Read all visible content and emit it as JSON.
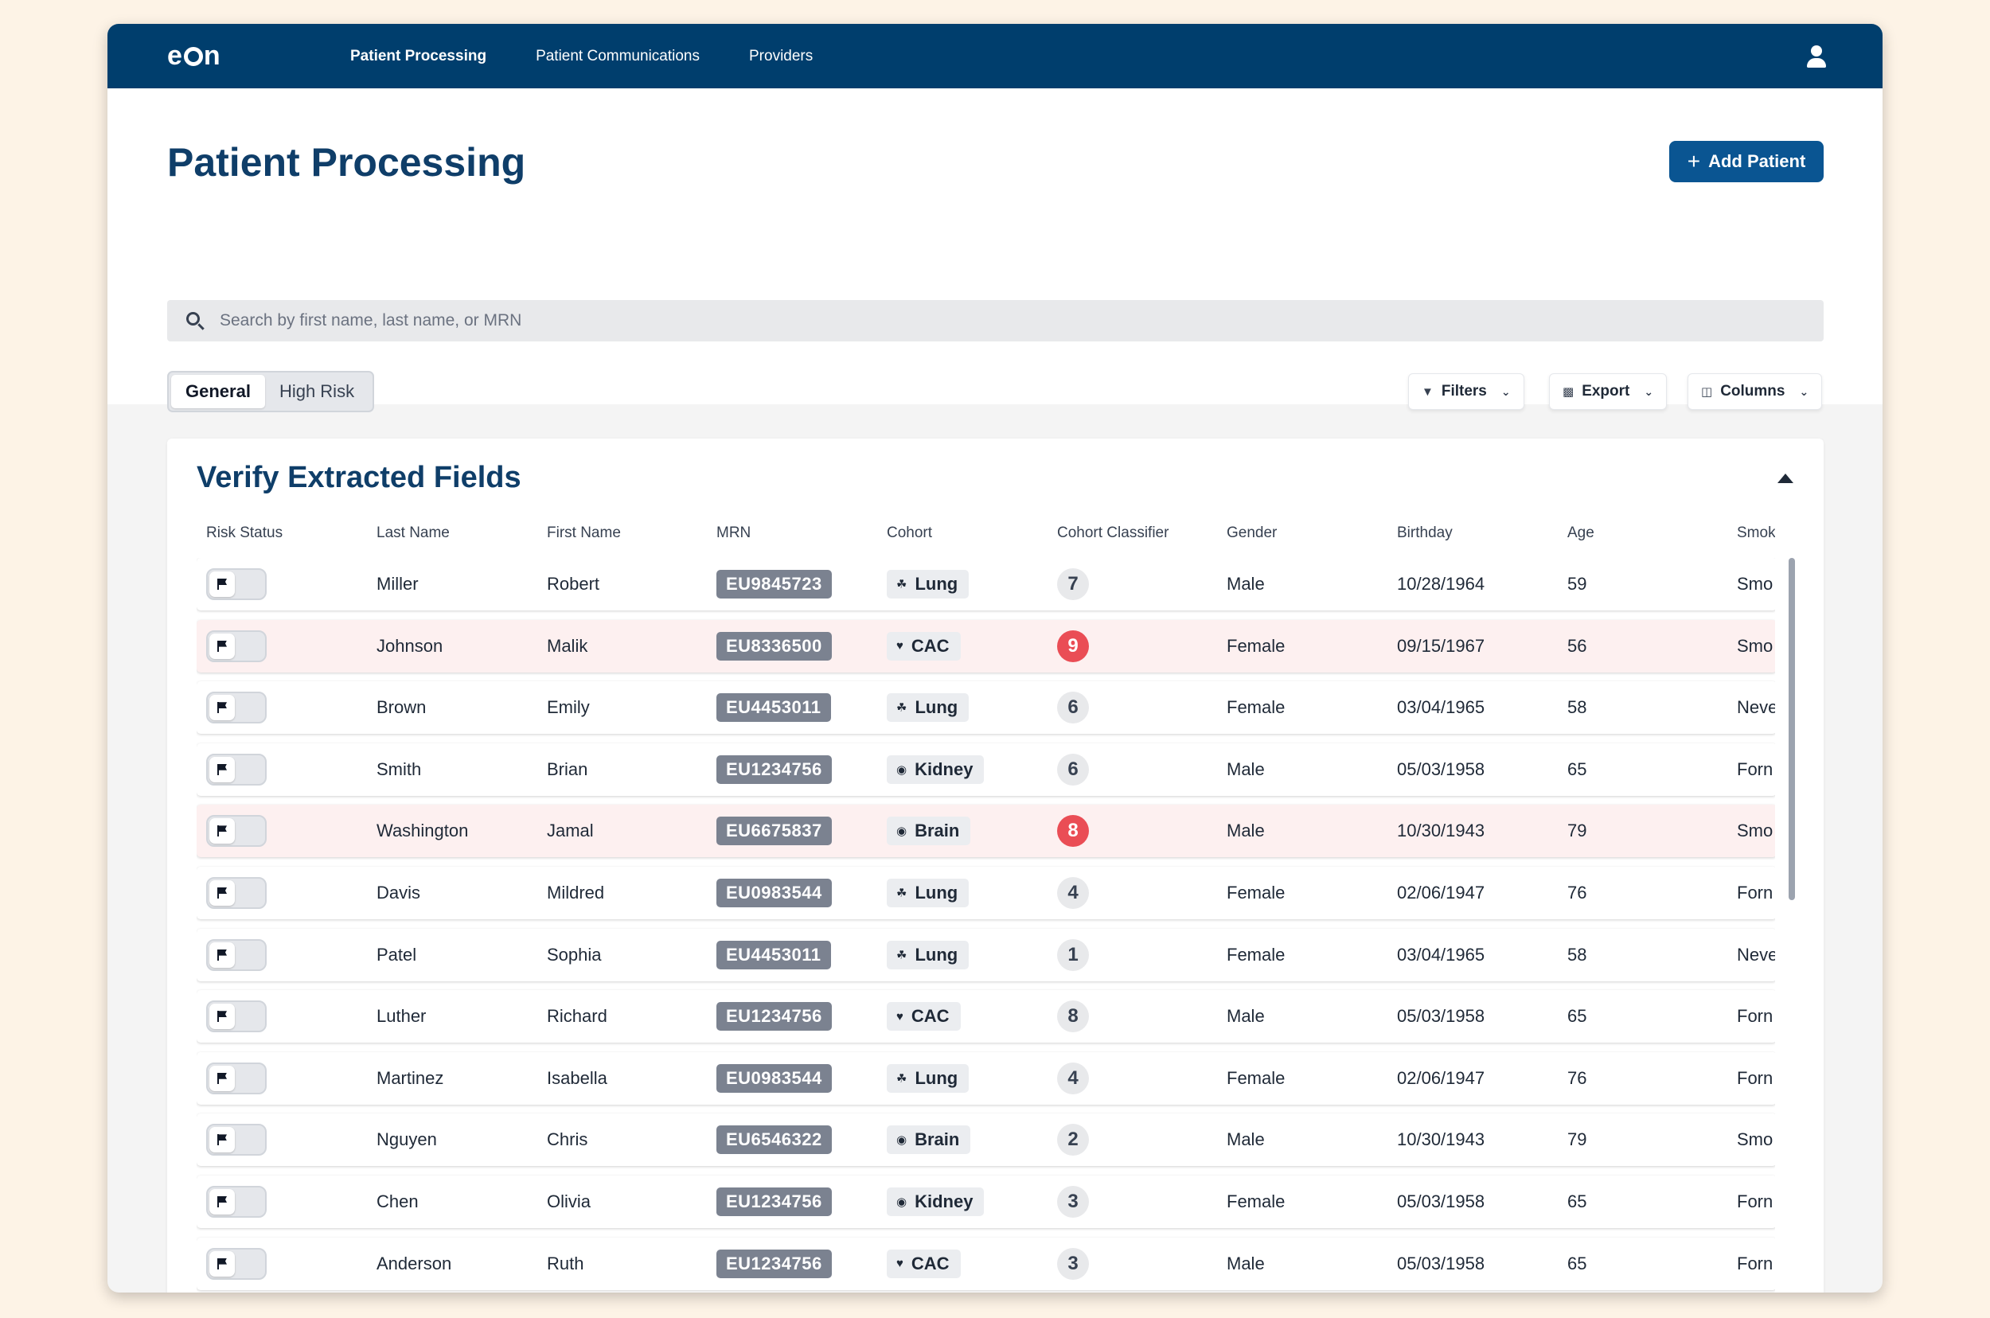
{
  "app": {
    "logo": "eon",
    "nav": [
      "Patient Processing",
      "Patient Communications",
      "Providers"
    ],
    "active_nav": "Patient Processing"
  },
  "header": {
    "title": "Patient Processing",
    "add_button": "Add Patient",
    "search_placeholder": "Search by first name, last name, or MRN",
    "segments": [
      "General",
      "High Risk"
    ],
    "active_segment": "General",
    "filters_label": "Filters",
    "export_label": "Export",
    "columns_label": "Columns"
  },
  "table": {
    "title": "Verify Extracted Fields",
    "columns": [
      "Risk Status",
      "Last Name",
      "First Name",
      "MRN",
      "Cohort",
      "Cohort Classifier",
      "Gender",
      "Birthday",
      "Age",
      "Smok"
    ],
    "rows": [
      {
        "last": "Miller",
        "first": "Robert",
        "mrn": "EU9845723",
        "cohort": "Lung",
        "score": "7",
        "high": false,
        "gender": "Male",
        "birthday": "10/28/1964",
        "age": "59",
        "smoking": "Smo"
      },
      {
        "last": "Johnson",
        "first": "Malik",
        "mrn": "EU8336500",
        "cohort": "CAC",
        "score": "9",
        "high": true,
        "gender": "Female",
        "birthday": "09/15/1967",
        "age": "56",
        "smoking": "Smo"
      },
      {
        "last": "Brown",
        "first": "Emily",
        "mrn": "EU4453011",
        "cohort": "Lung",
        "score": "6",
        "high": false,
        "gender": "Female",
        "birthday": "03/04/1965",
        "age": "58",
        "smoking": "Neve"
      },
      {
        "last": "Smith",
        "first": "Brian",
        "mrn": "EU1234756",
        "cohort": "Kidney",
        "score": "6",
        "high": false,
        "gender": "Male",
        "birthday": "05/03/1958",
        "age": "65",
        "smoking": "Forn"
      },
      {
        "last": "Washington",
        "first": "Jamal",
        "mrn": "EU6675837",
        "cohort": "Brain",
        "score": "8",
        "high": true,
        "gender": "Male",
        "birthday": "10/30/1943",
        "age": "79",
        "smoking": "Smo"
      },
      {
        "last": "Davis",
        "first": "Mildred",
        "mrn": "EU0983544",
        "cohort": "Lung",
        "score": "4",
        "high": false,
        "gender": "Female",
        "birthday": "02/06/1947",
        "age": "76",
        "smoking": "Forn"
      },
      {
        "last": "Patel",
        "first": "Sophia",
        "mrn": "EU4453011",
        "cohort": "Lung",
        "score": "1",
        "high": false,
        "gender": "Female",
        "birthday": "03/04/1965",
        "age": "58",
        "smoking": "Neve"
      },
      {
        "last": "Luther",
        "first": "Richard",
        "mrn": "EU1234756",
        "cohort": "CAC",
        "score": "8",
        "high": false,
        "gender": "Male",
        "birthday": "05/03/1958",
        "age": "65",
        "smoking": "Forn"
      },
      {
        "last": "Martinez",
        "first": "Isabella",
        "mrn": "EU0983544",
        "cohort": "Lung",
        "score": "4",
        "high": false,
        "gender": "Female",
        "birthday": "02/06/1947",
        "age": "76",
        "smoking": "Forn"
      },
      {
        "last": "Nguyen",
        "first": "Chris",
        "mrn": "EU6546322",
        "cohort": "Brain",
        "score": "2",
        "high": false,
        "gender": "Male",
        "birthday": "10/30/1943",
        "age": "79",
        "smoking": "Smo"
      },
      {
        "last": "Chen",
        "first": "Olivia",
        "mrn": "EU1234756",
        "cohort": "Kidney",
        "score": "3",
        "high": false,
        "gender": "Female",
        "birthday": "05/03/1958",
        "age": "65",
        "smoking": "Forn"
      },
      {
        "last": "Anderson",
        "first": "Ruth",
        "mrn": "EU1234756",
        "cohort": "CAC",
        "score": "3",
        "high": false,
        "gender": "Male",
        "birthday": "05/03/1958",
        "age": "65",
        "smoking": "Forn"
      }
    ]
  },
  "colors": {
    "nav_bg": "#003e6d",
    "title": "#0f3e69",
    "primary_button": "#0a5592",
    "risk_row": "#fdf0f0",
    "high_score": "#ea4d55",
    "mrn_badge": "#7b8290"
  },
  "icons": {
    "Lung": "lungs-icon",
    "CAC": "heart-icon",
    "Kidney": "kidney-icon",
    "Brain": "brain-icon"
  }
}
